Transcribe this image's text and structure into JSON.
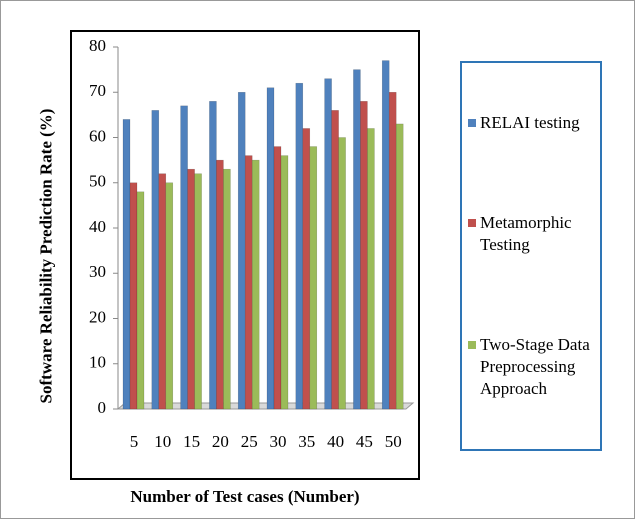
{
  "chart_data": {
    "type": "bar",
    "x_label": "Number of Test cases (Number)",
    "y_label": "Software Reliability Prediction Rate (%)",
    "categories": [
      "5",
      "10",
      "15",
      "20",
      "25",
      "30",
      "35",
      "40",
      "45",
      "50"
    ],
    "series": [
      {
        "name": "RELAI testing",
        "color": "#4f81bd",
        "values": [
          64,
          66,
          67,
          68,
          70,
          71,
          72,
          73,
          75,
          77
        ]
      },
      {
        "name": "Metamorphic Testing",
        "color": "#c0504d",
        "values": [
          50,
          52,
          53,
          55,
          56,
          58,
          62,
          66,
          68,
          70
        ]
      },
      {
        "name": "Two-Stage Data Preprocessing Approach",
        "color": "#9bbb59",
        "values": [
          48,
          50,
          52,
          53,
          55,
          56,
          58,
          60,
          62,
          63
        ]
      }
    ],
    "ylim": [
      0,
      80
    ],
    "yticks": [
      0,
      10,
      20,
      30,
      40,
      50,
      60,
      70,
      80
    ]
  }
}
